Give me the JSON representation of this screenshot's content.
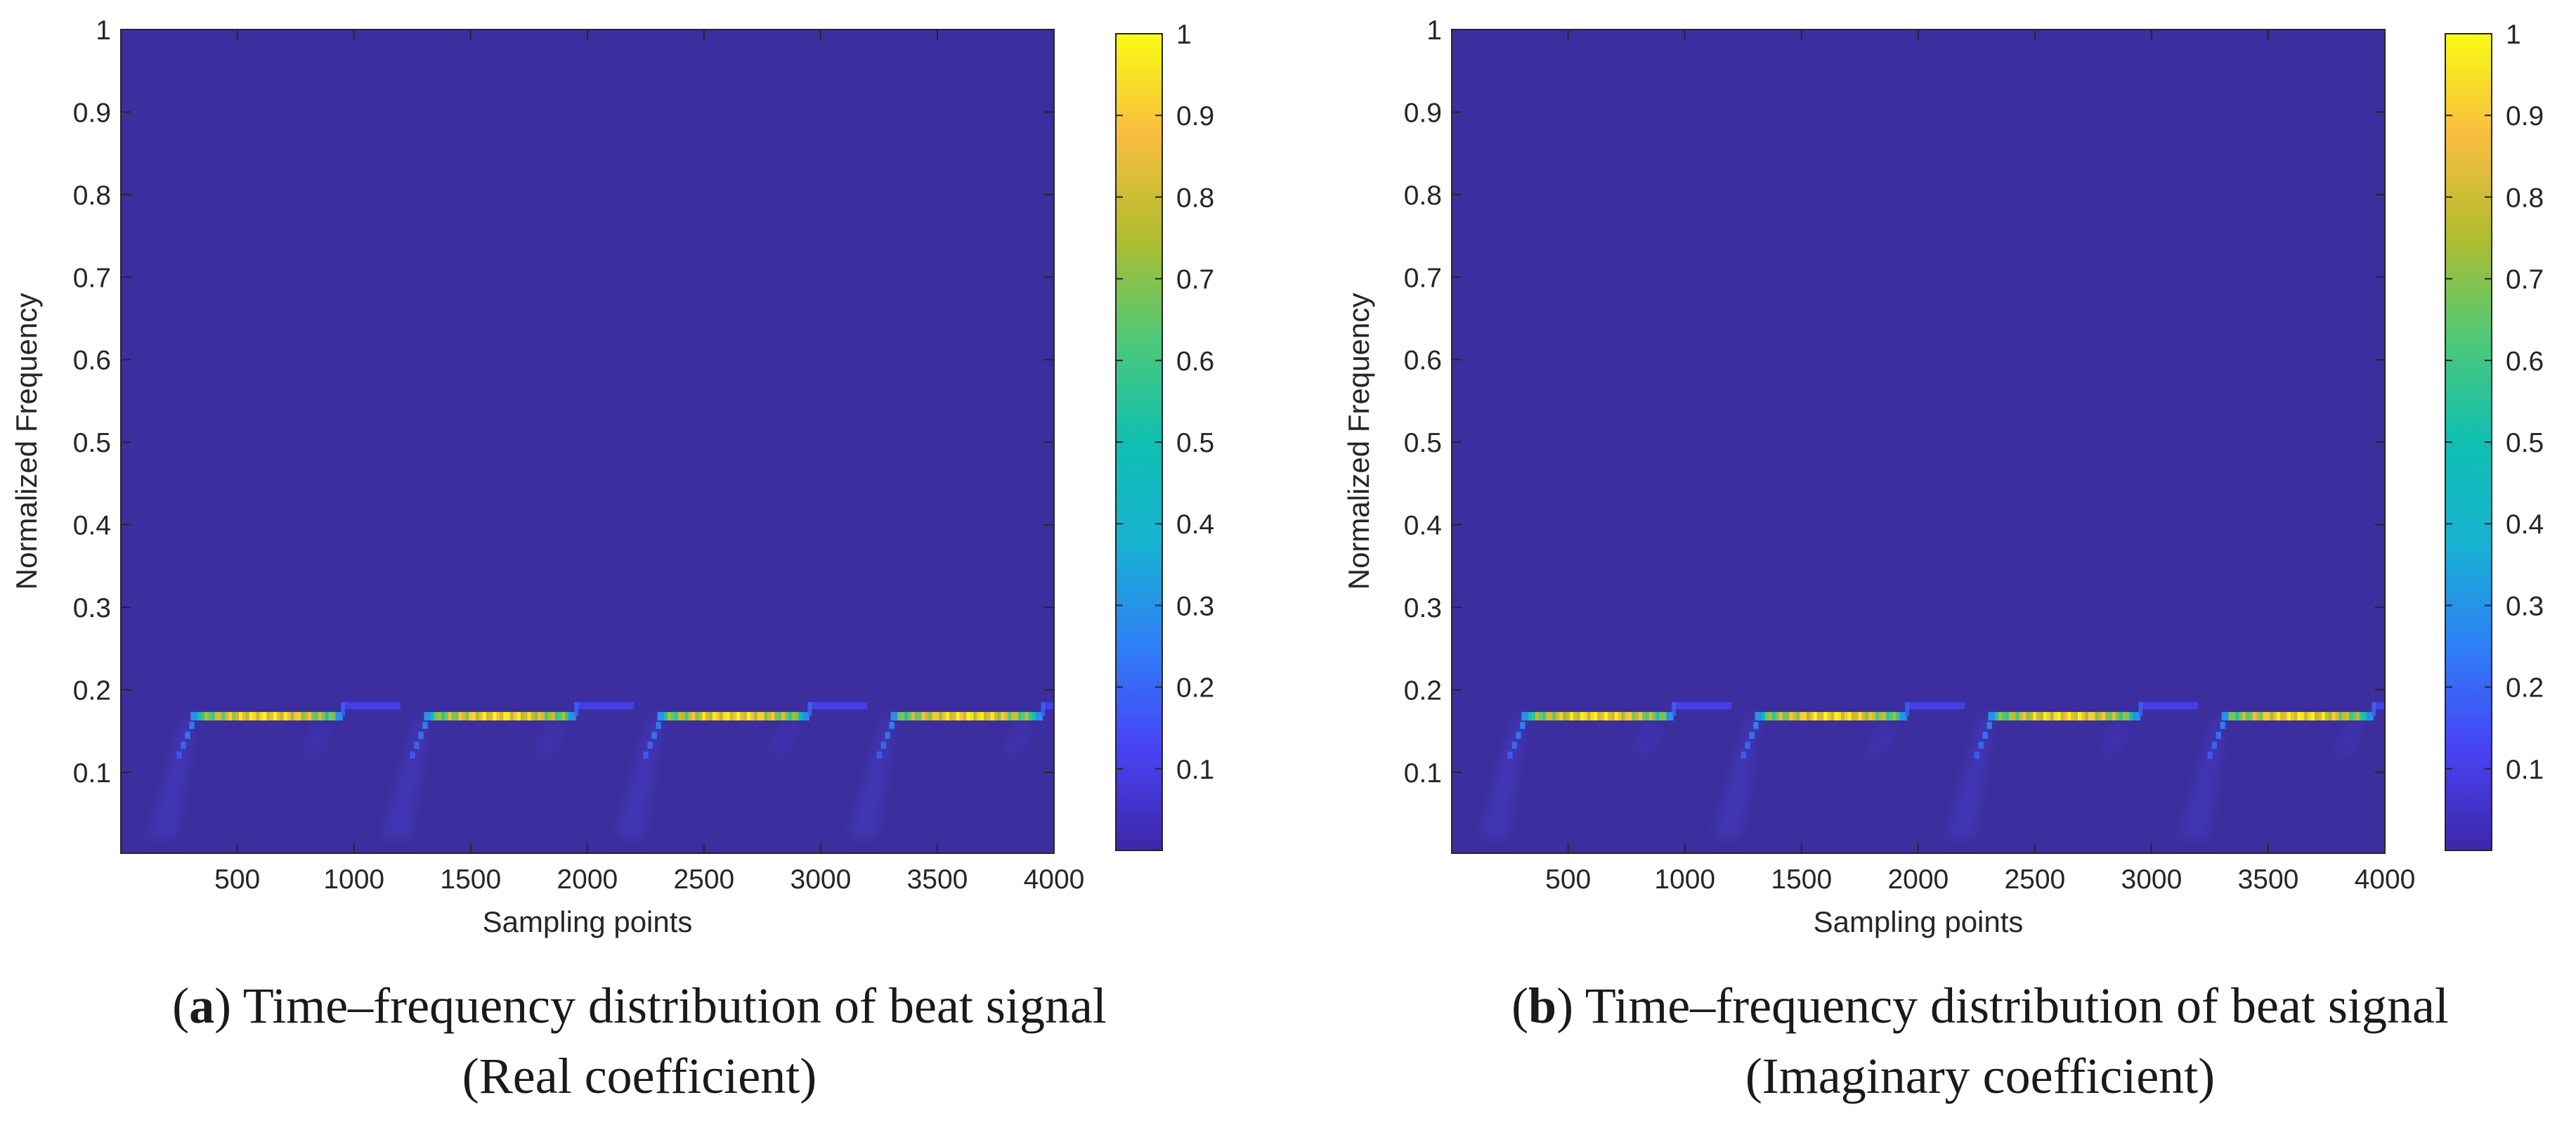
{
  "colors": {
    "background": "#3c2e9e",
    "colormap": [
      "#3e26a8",
      "#4743f5",
      "#2f7ff7",
      "#18b2d2",
      "#0fbfb2",
      "#4dc978",
      "#b0bd2f",
      "#f9bd3f",
      "#f9fb15"
    ]
  },
  "chart_data": [
    {
      "type": "heatmap",
      "panel_label": "a",
      "caption_line1": "Time–frequency distribution of beat signal",
      "caption_line2": "(Real coefficient)",
      "xlabel": "Sampling points",
      "ylabel": "Normalized Frequency",
      "xlim": [
        1,
        4000
      ],
      "ylim": [
        0.002,
        1
      ],
      "x_ticks": [
        500,
        1000,
        1500,
        2000,
        2500,
        3000,
        3500,
        4000
      ],
      "y_ticks": [
        0.1,
        0.2,
        0.3,
        0.4,
        0.5,
        0.6,
        0.7,
        0.8,
        0.9,
        1
      ],
      "colorbar_ticks": [
        0.1,
        0.2,
        0.3,
        0.4,
        0.5,
        0.6,
        0.7,
        0.8,
        0.9,
        1
      ],
      "colorbar_range": [
        0,
        1
      ],
      "band_frequency": 0.168,
      "step_frequency": 0.18,
      "segments": [
        {
          "start": 300,
          "end": 950,
          "step_end": 1200
        },
        {
          "start": 1300,
          "end": 1950,
          "step_end": 2200
        },
        {
          "start": 2300,
          "end": 2950,
          "step_end": 3200
        },
        {
          "start": 3300,
          "end": 3950,
          "step_end": 4000
        }
      ]
    },
    {
      "type": "heatmap",
      "panel_label": "b",
      "caption_line1": "Time–frequency distribution of beat signal",
      "caption_line2": "(Imaginary coefficient)",
      "xlabel": "Sampling points",
      "ylabel": "Normalized Frequency",
      "xlim": [
        1,
        4000
      ],
      "ylim": [
        0.002,
        1
      ],
      "x_ticks": [
        500,
        1000,
        1500,
        2000,
        2500,
        3000,
        3500,
        4000
      ],
      "y_ticks": [
        0.1,
        0.2,
        0.3,
        0.4,
        0.5,
        0.6,
        0.7,
        0.8,
        0.9,
        1
      ],
      "colorbar_ticks": [
        0.1,
        0.2,
        0.3,
        0.4,
        0.5,
        0.6,
        0.7,
        0.8,
        0.9,
        1
      ],
      "colorbar_range": [
        0,
        1
      ],
      "band_frequency": 0.168,
      "step_frequency": 0.18,
      "segments": [
        {
          "start": 300,
          "end": 950,
          "step_end": 1200
        },
        {
          "start": 1300,
          "end": 1950,
          "step_end": 2200
        },
        {
          "start": 2300,
          "end": 2950,
          "step_end": 3200
        },
        {
          "start": 3300,
          "end": 3950,
          "step_end": 4000
        }
      ]
    }
  ]
}
